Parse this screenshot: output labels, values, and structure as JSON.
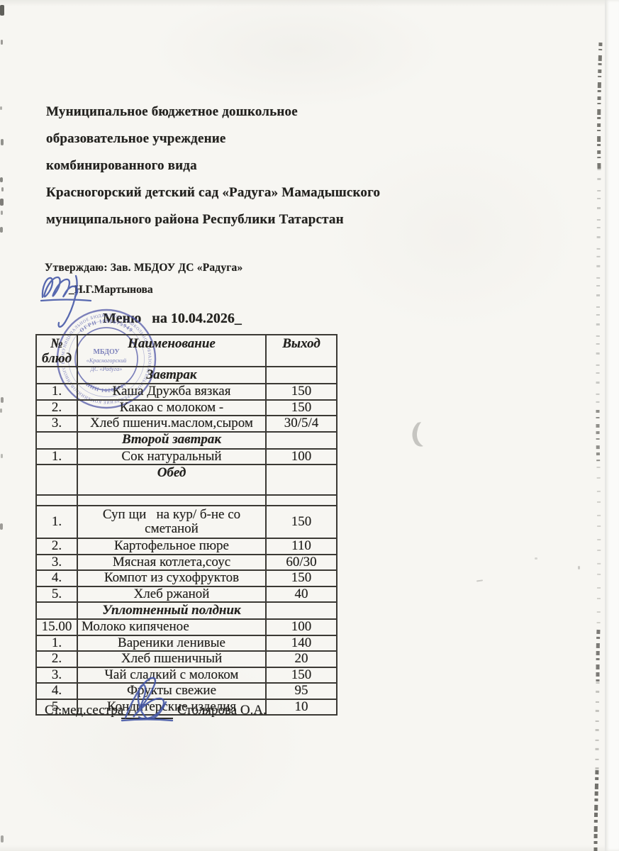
{
  "page": {
    "org_lines": [
      "Муниципальное бюджетное дошкольное",
      "образовательное учреждение",
      "комбинированного вида",
      "Красногорский детский сад «Радуга» Мамадышского",
      "муниципального района Республики Татарстан"
    ],
    "approve_line": "Утверждаю: Зав. МБДОУ ДС «Радуга»",
    "approver_name": "_Н.Г.Мартынова",
    "menu_title": "Меню   на 10.04.2026_",
    "footer_role": "Ст.мед.сестра :",
    "footer_name": "Столярова О.А."
  },
  "stamp": {
    "center_l1": "МБДОУ",
    "center_l2": "«Красногорский",
    "center_l3": "ДС «Радуга»",
    "ring_top": "ОГРН 1151675949",
    "ring_bottom": "ИНН 16260147",
    "outer_text": "• МУНИЦИПАЛЬНОЕ БЮДЖЕТНОЕ ДОШКОЛЬНОЕ ОБРАЗОВАТЕЛЬНОЕ УЧРЕЖДЕНИЕ КОМБИНИРОВАННОГО ВИДА •",
    "color": "#5a60ab"
  },
  "colors": {
    "paper": "#f7f6f2",
    "ink": "#23221f",
    "stamp_blue": "#5a60ab",
    "pen_blue": "#4354a6"
  },
  "table": {
    "headers": {
      "num_l1": "№",
      "num_l2": "блюд",
      "name": "Наименование",
      "out": "Выход"
    },
    "rows": [
      {
        "type": "section",
        "label": "Завтрак"
      },
      {
        "type": "item",
        "num": "1.",
        "name": "Каша Дружба вязкая",
        "out": "150"
      },
      {
        "type": "item",
        "num": "2.",
        "name": "Какао с молоком -",
        "out": "150"
      },
      {
        "type": "item",
        "num": "3.",
        "name": "Хлеб пшенич.маслом,сыром",
        "out": "30/5/4"
      },
      {
        "type": "section",
        "label": "Второй завтрак"
      },
      {
        "type": "item",
        "num": "1.",
        "name": "Сок натуральный",
        "out": "100"
      },
      {
        "type": "section",
        "label": "Обед",
        "tall": true
      },
      {
        "type": "empty"
      },
      {
        "type": "item",
        "num": "1.",
        "name": "Суп щи   на кур/ б-не со сметаной",
        "out": "150",
        "tall": true
      },
      {
        "type": "item",
        "num": "2.",
        "name": "Картофельное пюре",
        "out": "110"
      },
      {
        "type": "item",
        "num": "3.",
        "name": "Мясная котлета,соус",
        "out": "60/30"
      },
      {
        "type": "item",
        "num": "4.",
        "name": "Компот из сухофруктов",
        "out": "150"
      },
      {
        "type": "item",
        "num": "5.",
        "name": "Хлеб ржаной",
        "out": "40"
      },
      {
        "type": "section",
        "label": "Уплотненный полдник"
      },
      {
        "type": "item",
        "num": "15.00",
        "name": "Молоко кипяченое",
        "out": "100",
        "align": "left"
      },
      {
        "type": "item",
        "num": "1.",
        "name": "Вареники ленивые",
        "out": "140"
      },
      {
        "type": "item",
        "num": "2.",
        "name": "Хлеб пшеничный",
        "out": "20"
      },
      {
        "type": "item",
        "num": "3.",
        "name": "Чай сладкий с молоком",
        "out": "150"
      },
      {
        "type": "item",
        "num": "4.",
        "name": "Фрукты свежие",
        "out": "95"
      },
      {
        "type": "item",
        "num": "5.",
        "name": "Кондитерские изделия",
        "out": "10"
      }
    ]
  }
}
